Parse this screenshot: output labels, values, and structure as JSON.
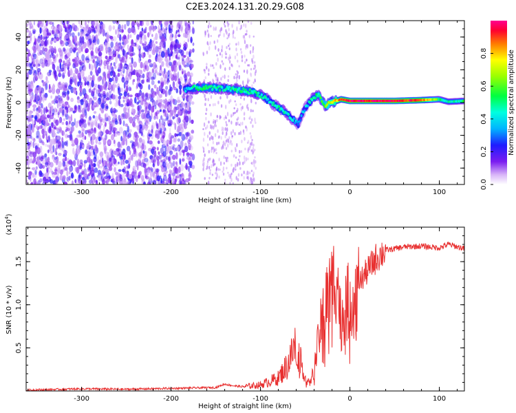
{
  "figure_title": "C2E3.2024.131.20.29.G08",
  "chart_data": [
    {
      "type": "heatmap",
      "xlabel": "Height of straight line (km)",
      "ylabel": "Frequency (Hz)",
      "xlim": [
        -362,
        128
      ],
      "ylim": [
        -50,
        50
      ],
      "x_ticks": [
        -300,
        -200,
        -100,
        0,
        100
      ],
      "x_tick_labels": [
        "-300",
        "-200",
        "-100",
        "0",
        "100"
      ],
      "y_ticks": [
        -40,
        -20,
        0,
        20,
        40
      ],
      "y_tick_labels": [
        "-40",
        "-20",
        "0",
        "20",
        "40"
      ],
      "colorbar": {
        "label": "Normalized spectral amplitude",
        "range": [
          0,
          1
        ],
        "ticks": [
          0.0,
          0.2,
          0.4,
          0.6,
          0.8
        ],
        "tick_labels": [
          "0.0",
          "0.2",
          "0.4",
          "0.6",
          "0.8"
        ],
        "colormap": "rainbow"
      },
      "ridge": {
        "x": [
          -185,
          -175,
          -160,
          -140,
          -120,
          -105,
          -95,
          -88,
          -80,
          -72,
          -65,
          -58,
          -50,
          -42,
          -35,
          -28,
          -20,
          -10,
          0,
          20,
          50,
          80,
          100,
          110,
          128
        ],
        "freq_hz": [
          8,
          9,
          9,
          8.5,
          7.5,
          6,
          3,
          0,
          -3,
          -6,
          -10,
          -13,
          -3,
          2,
          5,
          -2,
          0,
          2,
          1,
          1,
          1,
          1.5,
          2,
          0.5,
          1
        ],
        "amplitude": [
          0.35,
          0.45,
          0.5,
          0.45,
          0.5,
          0.45,
          0.45,
          0.4,
          0.45,
          0.45,
          0.4,
          0.35,
          0.35,
          0.45,
          0.5,
          0.6,
          0.75,
          0.85,
          0.95,
          0.95,
          0.95,
          0.9,
          0.55,
          0.45,
          0.5
        ]
      },
      "noise_region_x": [
        -362,
        -175
      ]
    },
    {
      "type": "line",
      "xlabel": "Height of straight line (km)",
      "ylabel": "SNR (10 * v/v)",
      "y_multiplier_label": "(x10",
      "y_multiplier_exp": "4",
      "y_multiplier_close": ")",
      "xlim": [
        -362,
        128
      ],
      "ylim": [
        0,
        19000
      ],
      "x_ticks": [
        -300,
        -200,
        -100,
        0,
        100
      ],
      "x_tick_labels": [
        "-300",
        "-200",
        "-100",
        "0",
        "100"
      ],
      "y_ticks": [
        5000,
        10000,
        15000
      ],
      "y_tick_labels": [
        "0.5",
        "1.0",
        "1.5"
      ],
      "line_color": "#e83030",
      "series": [
        {
          "x": [
            -362,
            -300,
            -250,
            -200,
            -150,
            -140,
            -130,
            -120,
            -100,
            -80,
            -70,
            -60,
            -55,
            -50,
            -45,
            -40,
            -35,
            -30,
            -25,
            -20,
            -15,
            -10,
            -5,
            0,
            5,
            10,
            20,
            30,
            40,
            60,
            80,
            100,
            110,
            128
          ],
          "values": [
            100,
            250,
            200,
            300,
            400,
            800,
            600,
            500,
            700,
            1500,
            3000,
            5500,
            3500,
            1500,
            800,
            2500,
            6000,
            9000,
            11000,
            12000,
            14000,
            8000,
            10000,
            10500,
            11000,
            12500,
            14000,
            15500,
            16300,
            16700,
            16800,
            16600,
            17000,
            16500
          ]
        }
      ]
    }
  ]
}
